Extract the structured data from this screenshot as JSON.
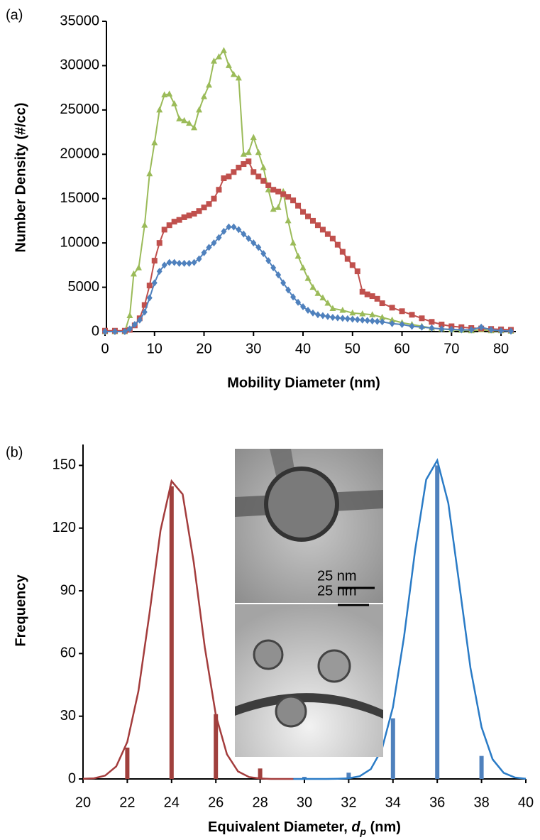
{
  "chart_data": [
    {
      "type": "line",
      "label": "(a)",
      "ylabel": "Number Density (#/cc)",
      "xlabel": "Mobility Diameter  (nm)",
      "xlim": [
        0,
        83
      ],
      "ylim": [
        0,
        35000
      ],
      "xticks": [
        0,
        10,
        20,
        30,
        40,
        50,
        60,
        70,
        80
      ],
      "yticks": [
        0,
        5000,
        10000,
        15000,
        20000,
        25000,
        30000,
        35000
      ],
      "series": [
        {
          "color": "#9bbb59",
          "marker": "triangle",
          "x": [
            0,
            2,
            4,
            5,
            5.8,
            6.8,
            8,
            9,
            10,
            11,
            12,
            13,
            14,
            15,
            16,
            17,
            18,
            19,
            20,
            21,
            22,
            23,
            24,
            25,
            26,
            27,
            28,
            29,
            30,
            31,
            32,
            33,
            34,
            35,
            36,
            37,
            38,
            39,
            40,
            41,
            42,
            43,
            44,
            45,
            46,
            48,
            50,
            52,
            54,
            56,
            58,
            60,
            62,
            64,
            66,
            68,
            70,
            72,
            74,
            76,
            78,
            80,
            82
          ],
          "values": [
            0,
            0,
            0,
            1800,
            6500,
            7200,
            12000,
            17800,
            21300,
            25000,
            26700,
            26800,
            25700,
            24000,
            23800,
            23500,
            23000,
            25000,
            26500,
            27800,
            30500,
            31000,
            31700,
            30000,
            29000,
            28600,
            20000,
            20200,
            21900,
            20200,
            18500,
            16000,
            13800,
            14000,
            15800,
            12500,
            10000,
            8500,
            7200,
            6000,
            5000,
            4300,
            3800,
            3200,
            2600,
            2400,
            2100,
            2000,
            1900,
            1600,
            1300,
            1000,
            800,
            600,
            400,
            300,
            200,
            150,
            100,
            200,
            100,
            100,
            50
          ]
        },
        {
          "color": "#c0504d",
          "marker": "square",
          "x": [
            0,
            2,
            4,
            5,
            6,
            7,
            8,
            9,
            10,
            11,
            12,
            13,
            14,
            15,
            16,
            17,
            18,
            19,
            20,
            21,
            22,
            23,
            24,
            25,
            26,
            27,
            28,
            29,
            30,
            31,
            32,
            33,
            34,
            35,
            36,
            37,
            38,
            39,
            40,
            41,
            42,
            43,
            44,
            45,
            46,
            47,
            48,
            49,
            50,
            51,
            52,
            53,
            54,
            55,
            56,
            58,
            60,
            62,
            64,
            66,
            68,
            70,
            72,
            74,
            76,
            78,
            80,
            82
          ],
          "values": [
            100,
            100,
            100,
            200,
            700,
            1500,
            3000,
            5200,
            8000,
            10000,
            11500,
            12000,
            12400,
            12600,
            12900,
            13100,
            13300,
            13600,
            14000,
            14400,
            15000,
            16000,
            17300,
            17500,
            18000,
            18500,
            18900,
            19200,
            18000,
            17500,
            17000,
            16500,
            16000,
            15800,
            15500,
            15200,
            14800,
            14200,
            13500,
            13000,
            12500,
            12000,
            11500,
            11000,
            10500,
            9800,
            9000,
            8200,
            7500,
            6800,
            4500,
            4200,
            4000,
            3700,
            3200,
            2700,
            2300,
            1900,
            1500,
            1100,
            800,
            600,
            500,
            400,
            350,
            300,
            250,
            200
          ]
        },
        {
          "color": "#4f81bd",
          "marker": "diamond",
          "x": [
            0,
            2,
            4,
            5,
            6,
            7,
            8,
            9,
            10,
            11,
            12,
            13,
            14,
            15,
            16,
            17,
            18,
            19,
            20,
            21,
            22,
            23,
            24,
            25,
            26,
            27,
            28,
            29,
            30,
            31,
            32,
            33,
            34,
            35,
            36,
            37,
            38,
            39,
            40,
            41,
            42,
            43,
            44,
            45,
            46,
            47,
            48,
            49,
            50,
            51,
            52,
            53,
            54,
            55,
            56,
            58,
            60,
            62,
            64,
            66,
            68,
            70,
            72,
            74,
            76,
            78,
            80,
            82
          ],
          "values": [
            0,
            0,
            0,
            300,
            800,
            1300,
            2200,
            3800,
            5500,
            6800,
            7500,
            7800,
            7800,
            7700,
            7700,
            7700,
            7800,
            8200,
            8900,
            9500,
            10000,
            10600,
            11300,
            11800,
            11800,
            11500,
            11000,
            10500,
            10000,
            9500,
            8800,
            8000,
            7200,
            6400,
            5500,
            4700,
            3900,
            3300,
            2800,
            2400,
            2100,
            1900,
            1800,
            1700,
            1600,
            1550,
            1500,
            1450,
            1400,
            1350,
            1300,
            1250,
            1200,
            1150,
            1100,
            900,
            800,
            600,
            500,
            400,
            300,
            250,
            200,
            200,
            500,
            200,
            100,
            50
          ]
        }
      ]
    },
    {
      "type": "combo",
      "label": "(b)",
      "ylabel": "Frequency",
      "xlabel_parts": [
        "Equivalent Diameter, ",
        "d",
        "p",
        " (nm)"
      ],
      "annotations": [
        "25 nm",
        "25 nm"
      ],
      "xlim": [
        20,
        40
      ],
      "ylim": [
        0,
        160
      ],
      "xticks": [
        20,
        22,
        24,
        26,
        28,
        30,
        32,
        34,
        36,
        38,
        40
      ],
      "yticks": [
        0,
        30,
        60,
        90,
        120,
        150
      ],
      "series": [
        {
          "type": "bar",
          "color": "#a0403d",
          "x": [
            22,
            24,
            26,
            28
          ],
          "values": [
            15,
            140,
            31,
            5
          ]
        },
        {
          "type": "bar",
          "color": "#4f81bd",
          "x": [
            30,
            32,
            34,
            36,
            38
          ],
          "values": [
            1,
            3,
            29,
            150,
            11
          ]
        },
        {
          "type": "line",
          "color": "#a33c3c",
          "x": [
            20,
            20.5,
            21,
            21.5,
            22,
            22.5,
            23,
            23.5,
            24,
            24.5,
            25,
            25.5,
            26,
            26.5,
            27,
            27.5,
            28,
            28.5,
            29,
            29.5
          ],
          "values": [
            0.1,
            0.3,
            1.6,
            6,
            17.7,
            41.9,
            79,
            118.9,
            142.5,
            136.2,
            103.7,
            63,
            30.5,
            11.8,
            3.6,
            0.9,
            0.2,
            0,
            0,
            0
          ]
        },
        {
          "type": "line",
          "color": "#2a7bc6",
          "x": [
            29.5,
            30,
            30.5,
            31,
            31.5,
            32,
            32.5,
            33,
            33.5,
            34,
            34.5,
            35,
            35.5,
            36,
            36.5,
            37,
            37.5,
            38,
            38.5,
            39,
            39.5,
            40
          ],
          "values": [
            0,
            0,
            0,
            0,
            0.1,
            0.3,
            1.3,
            4.7,
            14.2,
            34.4,
            68,
            109.4,
            143.2,
            152.4,
            131.9,
            92.8,
            53.1,
            24.8,
            9.4,
            2.9,
            0.7,
            0.1
          ]
        }
      ]
    }
  ]
}
